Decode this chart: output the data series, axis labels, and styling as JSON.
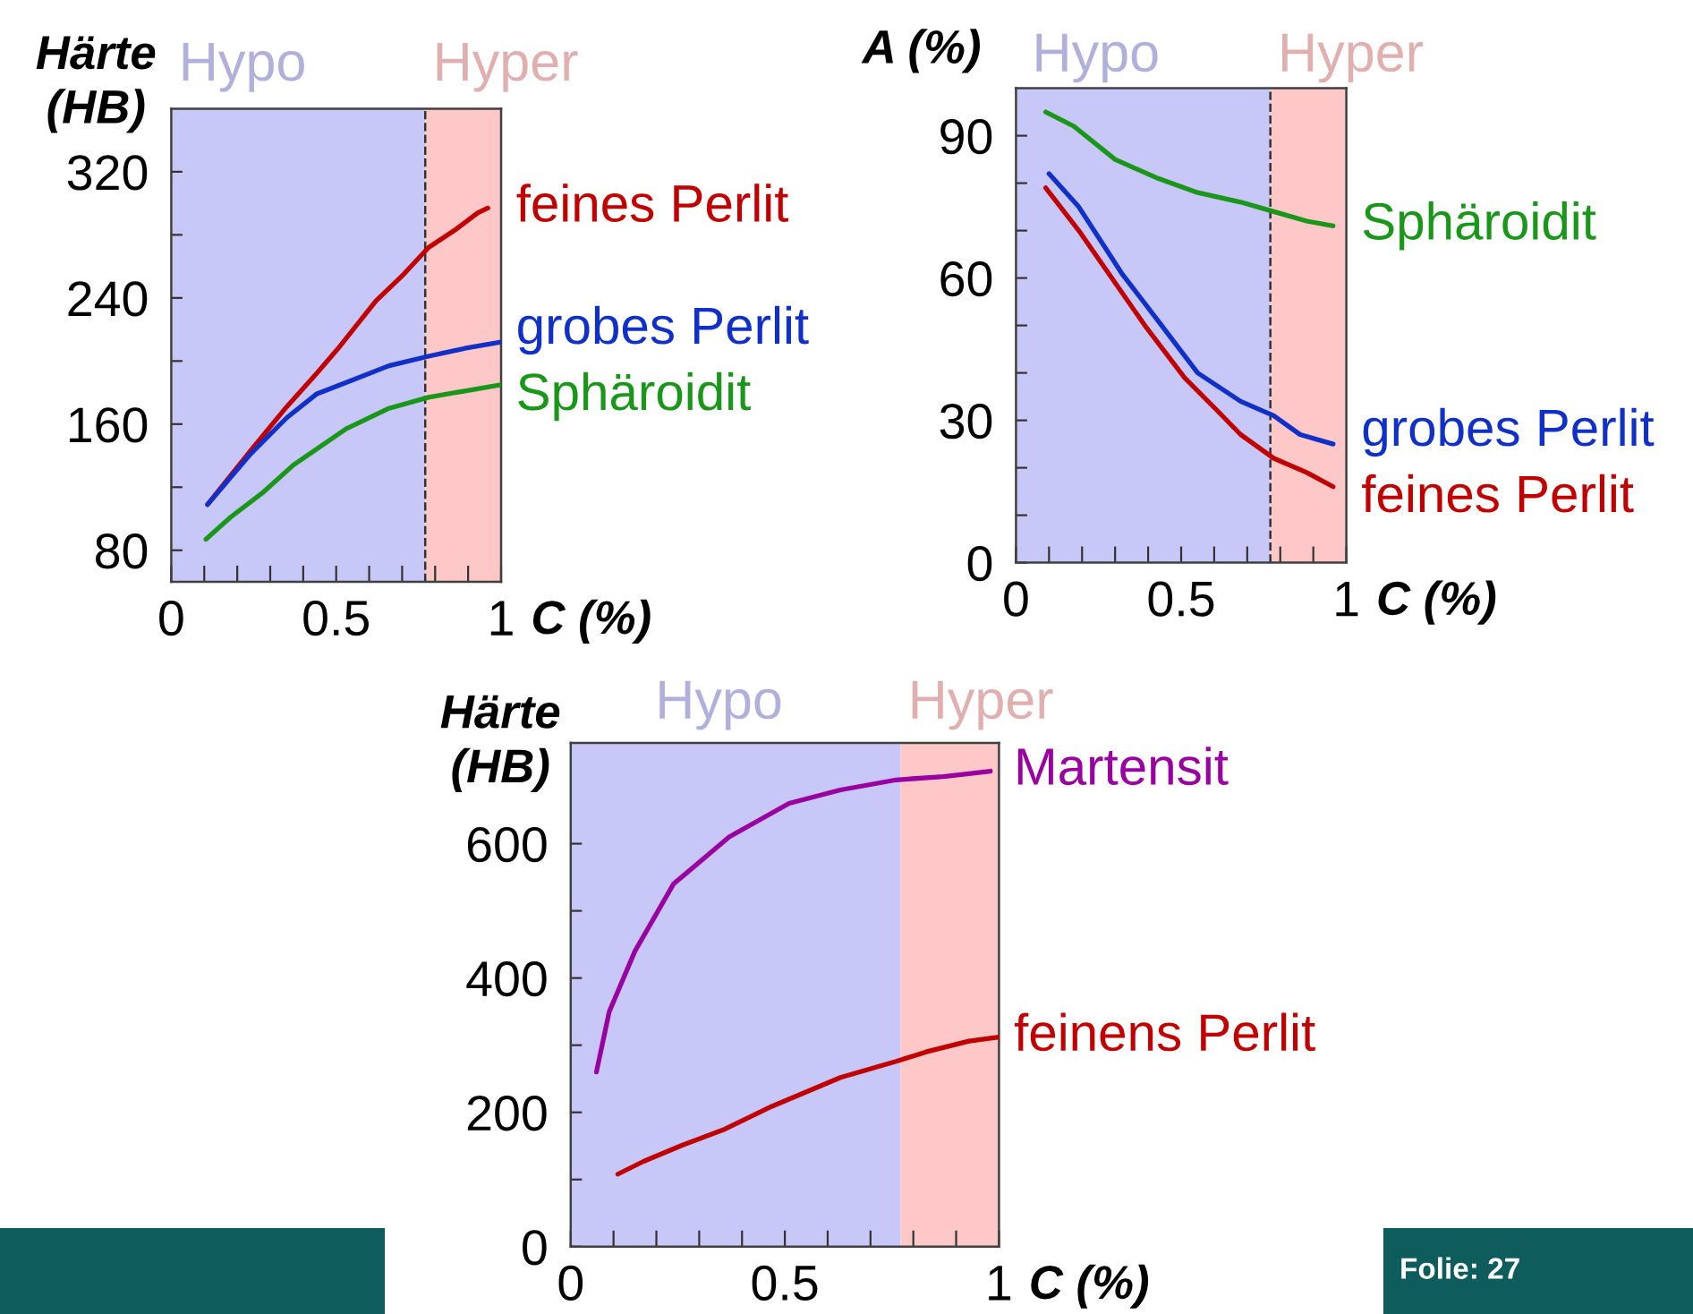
{
  "chart_data": [
    {
      "type": "line",
      "ylabel": "Härte\n(HB)",
      "xlabel": "C (%)",
      "xlim": [
        0,
        1
      ],
      "xticks": [
        0,
        {
          "value": 0.1,
          "label": null
        },
        {
          "value": 0.2,
          "label": null
        },
        {
          "value": 0.3,
          "label": null
        },
        {
          "value": 0.4,
          "label": null
        },
        0.5,
        {
          "value": 0.6,
          "label": null
        },
        {
          "value": 0.7,
          "label": null
        },
        {
          "value": 0.8,
          "label": null
        },
        {
          "value": 0.9,
          "label": null
        },
        1
      ],
      "ylim": [
        60,
        360
      ],
      "yticks": [
        80,
        {
          "value": 120,
          "label": null
        },
        160,
        {
          "value": 200,
          "label": null
        },
        240,
        {
          "value": 280,
          "label": null
        },
        320
      ],
      "bands": [
        {
          "axis": "x",
          "from": 0,
          "to": 0.77,
          "label": "Hypo",
          "color": "#c8c8f8"
        },
        {
          "axis": "x",
          "from": 0.77,
          "to": 1,
          "label": "Hyper",
          "color": "#ffc8c8"
        }
      ],
      "ref_lines": [
        {
          "axis": "x",
          "value": 0.77,
          "color": "#333333",
          "line_style": "dashed"
        }
      ],
      "series": [
        {
          "name": "feines Perlit",
          "color": "#c00000",
          "x": [
            0.11,
            0.24,
            0.35,
            0.44,
            0.51,
            0.62,
            0.7,
            0.78,
            0.86,
            0.93,
            0.96
          ],
          "values": [
            109,
            143,
            171,
            192,
            209,
            238,
            254,
            272,
            283,
            294,
            297
          ]
        },
        {
          "name": "grobes Perlit",
          "color": "#1030c8",
          "x": [
            0.11,
            0.24,
            0.35,
            0.44,
            0.55,
            0.66,
            0.78,
            0.89,
            1.0
          ],
          "values": [
            109,
            141,
            164,
            179,
            188,
            197,
            203,
            208,
            212
          ]
        },
        {
          "name": "Sphäroidit",
          "color": "#1a961a",
          "x": [
            0.105,
            0.18,
            0.28,
            0.37,
            0.53,
            0.66,
            0.78,
            0.89,
            1.0
          ],
          "values": [
            87,
            101,
            117,
            134,
            157,
            170,
            177,
            181,
            185
          ]
        }
      ]
    },
    {
      "type": "line",
      "ylabel": "A (%)",
      "xlabel": "C (%)",
      "xlim": [
        0,
        1
      ],
      "xticks": [
        0,
        {
          "value": 0.1,
          "label": null
        },
        {
          "value": 0.2,
          "label": null
        },
        {
          "value": 0.3,
          "label": null
        },
        {
          "value": 0.4,
          "label": null
        },
        0.5,
        {
          "value": 0.6,
          "label": null
        },
        {
          "value": 0.7,
          "label": null
        },
        {
          "value": 0.8,
          "label": null
        },
        {
          "value": 0.9,
          "label": null
        },
        1
      ],
      "ylim": [
        0,
        100
      ],
      "yticks": [
        0,
        {
          "value": 10,
          "label": null
        },
        {
          "value": 20,
          "label": null
        },
        30,
        {
          "value": 40,
          "label": null
        },
        {
          "value": 50,
          "label": null
        },
        60,
        {
          "value": 70,
          "label": null
        },
        {
          "value": 80,
          "label": null
        },
        90
      ],
      "bands": [
        {
          "axis": "x",
          "from": 0,
          "to": 0.77,
          "label": "Hypo",
          "color": "#c8c8f8"
        },
        {
          "axis": "x",
          "from": 0.77,
          "to": 1,
          "label": "Hyper",
          "color": "#ffc8c8"
        }
      ],
      "ref_lines": [
        {
          "axis": "x",
          "value": 0.77,
          "color": "#333333",
          "line_style": "dashed"
        }
      ],
      "series": [
        {
          "name": "Sphäroidit",
          "color": "#1a961a",
          "x": [
            0.09,
            0.175,
            0.3,
            0.43,
            0.55,
            0.68,
            0.78,
            0.88,
            0.96
          ],
          "values": [
            95,
            92,
            85,
            81,
            78,
            76,
            74,
            72,
            71
          ]
        },
        {
          "name": "grobes Perlit",
          "color": "#1030c8",
          "x": [
            0.1,
            0.19,
            0.32,
            0.43,
            0.55,
            0.68,
            0.78,
            0.86,
            0.96
          ],
          "values": [
            82,
            75,
            61,
            51,
            40,
            34,
            31,
            27,
            25
          ]
        },
        {
          "name": "feines Perlit",
          "color": "#c00000",
          "x": [
            0.09,
            0.19,
            0.28,
            0.39,
            0.51,
            0.61,
            0.68,
            0.78,
            0.88,
            0.96
          ],
          "values": [
            79,
            70,
            61,
            50,
            39,
            32,
            27,
            22,
            19,
            16
          ]
        }
      ]
    },
    {
      "type": "line",
      "ylabel": "Härte\n(HB)",
      "xlabel": "C (%)",
      "xlim": [
        0,
        1
      ],
      "xticks": [
        0,
        {
          "value": 0.1,
          "label": null
        },
        {
          "value": 0.2,
          "label": null
        },
        {
          "value": 0.3,
          "label": null
        },
        {
          "value": 0.4,
          "label": null
        },
        0.5,
        {
          "value": 0.6,
          "label": null
        },
        {
          "value": 0.7,
          "label": null
        },
        {
          "value": 0.8,
          "label": null
        },
        {
          "value": 0.9,
          "label": null
        },
        1
      ],
      "ylim": [
        0,
        750
      ],
      "yticks": [
        0,
        {
          "value": 100,
          "label": null
        },
        200,
        {
          "value": 300,
          "label": null
        },
        400,
        {
          "value": 500,
          "label": null
        },
        600
      ],
      "bands": [
        {
          "axis": "x",
          "from": 0,
          "to": 0.77,
          "label": "Hypo",
          "color": "#c8c8f8"
        },
        {
          "axis": "x",
          "from": 0.77,
          "to": 1,
          "label": "Hyper",
          "color": "#ffc8c8"
        }
      ],
      "series": [
        {
          "name": "Martensit",
          "color": "#9900a0",
          "x": [
            0.06,
            0.09,
            0.15,
            0.24,
            0.37,
            0.51,
            0.63,
            0.76,
            0.87,
            0.98
          ],
          "values": [
            260,
            350,
            440,
            540,
            610,
            660,
            680,
            695,
            700,
            708
          ]
        },
        {
          "name": "feinens Perlit",
          "color": "#c00000",
          "x": [
            0.11,
            0.17,
            0.26,
            0.36,
            0.47,
            0.63,
            0.76,
            0.83,
            0.93,
            1.0
          ],
          "values": [
            108,
            127,
            151,
            175,
            209,
            252,
            276,
            290,
            306,
            312
          ]
        }
      ],
      "annotations": [
        "Folie: 27"
      ]
    }
  ]
}
